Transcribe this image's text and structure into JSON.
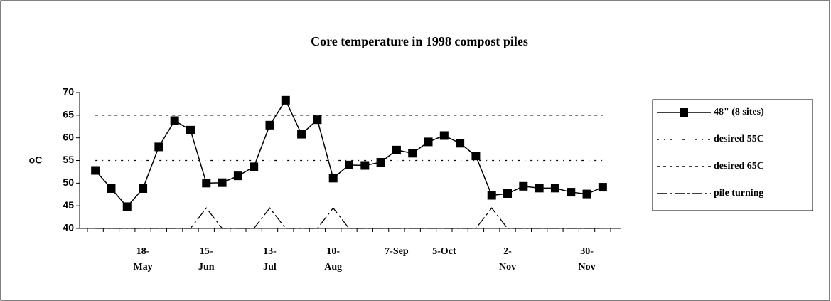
{
  "chart_data": {
    "type": "line",
    "title": "Core temperature in 1998 compost piles",
    "y_label": "oC",
    "categories": [
      null,
      null,
      null,
      "18-May",
      null,
      null,
      null,
      "15-Jun",
      null,
      null,
      null,
      "13-Jul",
      null,
      null,
      null,
      "10-Aug",
      null,
      null,
      null,
      "7-Sep",
      null,
      null,
      "5-Oct",
      null,
      null,
      null,
      "2-Nov",
      null,
      null,
      null,
      null,
      "30-Nov",
      null
    ],
    "series": [
      {
        "name": "48\" (8 sites)",
        "color": "#000000",
        "style": "solid-square",
        "values": [
          52.8,
          48.8,
          44.8,
          48.8,
          58,
          63.8,
          61.7,
          50,
          50.1,
          51.6,
          53.6,
          62.8,
          68.3,
          60.8,
          64,
          51.1,
          54,
          53.9,
          54.6,
          57.3,
          56.6,
          59.1,
          60.5,
          58.8,
          56,
          47.3,
          47.7,
          49.3,
          48.9,
          48.9,
          48,
          47.6,
          49.1
        ]
      },
      {
        "name": "desired 55C",
        "color": "#000000",
        "style": "dashdot",
        "values": [
          55,
          55,
          55,
          55,
          55,
          55,
          55,
          55,
          55,
          55,
          55,
          55,
          55,
          55,
          55,
          55,
          55,
          55,
          55,
          55,
          55,
          55,
          55,
          55,
          55,
          55,
          55,
          55,
          55,
          55,
          55,
          55,
          55
        ]
      },
      {
        "name": "desired 65C",
        "color": "#000000",
        "style": "dash",
        "values": [
          65,
          65,
          65,
          65,
          65,
          65,
          65,
          65,
          65,
          65,
          65,
          65,
          65,
          65,
          65,
          65,
          65,
          65,
          65,
          65,
          65,
          65,
          65,
          65,
          65,
          65,
          65,
          65,
          65,
          65,
          65,
          65,
          65
        ]
      },
      {
        "name": "pile turning",
        "color": "#000000",
        "style": "longdash",
        "values": [
          40,
          40,
          40,
          40,
          40,
          40,
          40,
          44.5,
          40,
          40,
          40,
          44.5,
          40,
          40,
          40,
          44.5,
          40,
          40,
          40,
          40,
          40,
          40,
          40,
          40,
          40,
          44.5,
          40,
          40,
          40,
          40,
          40,
          40,
          40
        ]
      }
    ],
    "ylim": [
      40,
      70
    ],
    "yticks": [
      40,
      45,
      50,
      55,
      60,
      65,
      70
    ],
    "legend": "right"
  }
}
